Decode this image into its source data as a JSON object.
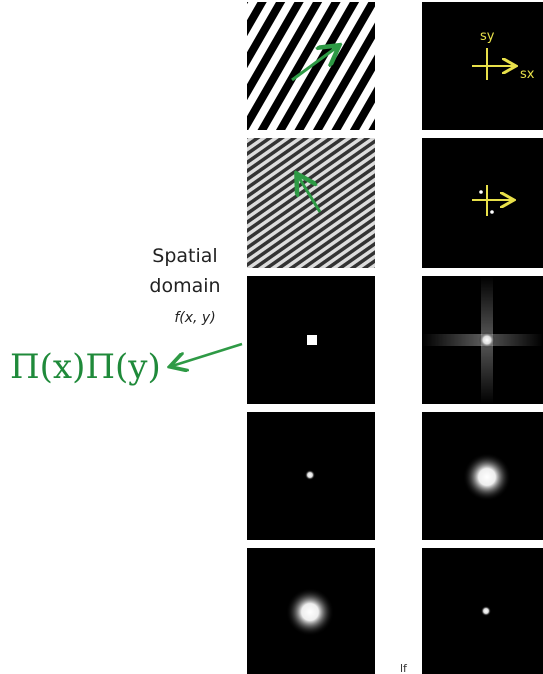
{
  "spatial_label": {
    "line1": "Spatial",
    "line2": "domain",
    "function": "f(x, y)"
  },
  "annotation": "Π(x)Π(y)",
  "frequency_axes": {
    "y": "sy",
    "x": "sx"
  },
  "footer_fragment": "lf"
}
